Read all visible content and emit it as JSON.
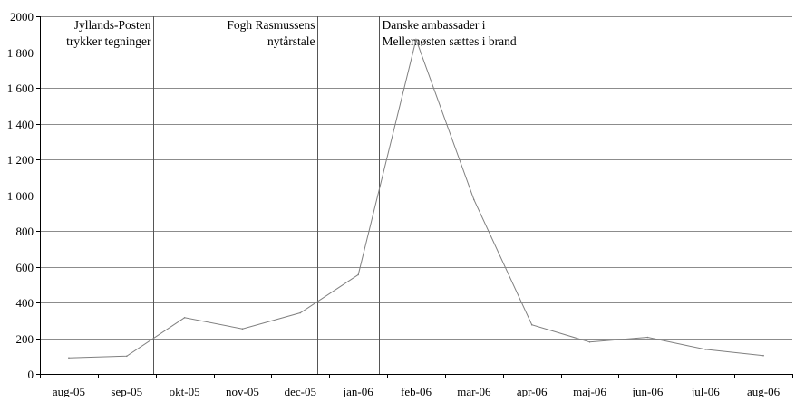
{
  "chart_data": {
    "type": "line",
    "title": "",
    "xlabel": "",
    "ylabel": "",
    "categories": [
      "aug-05",
      "sep-05",
      "okt-05",
      "nov-05",
      "dec-05",
      "jan-06",
      "feb-06",
      "mar-06",
      "apr-06",
      "maj-06",
      "jun-06",
      "jul-06",
      "aug-06"
    ],
    "series": [
      {
        "values": [
          90,
          100,
          315,
          252,
          342,
          555,
          1870,
          975,
          275,
          178,
          205,
          137,
          103
        ]
      }
    ],
    "ylim": [
      0,
      2000
    ],
    "yticks": [
      0,
      200,
      400,
      600,
      800,
      1000,
      1200,
      1400,
      1600,
      1800,
      2000
    ],
    "ytick_labels": [
      "0",
      "200",
      "400",
      "600",
      "800",
      "1 000",
      "1 200",
      "1 400",
      "1 600",
      "1 800",
      "2000"
    ],
    "grid": "horizontal",
    "legend": "none",
    "line_color": "#808080",
    "annotations": [
      {
        "x_index": 1.45,
        "text_lines": [
          "Jyllands-Posten",
          "trykker tegninger"
        ],
        "align": "right"
      },
      {
        "x_index": 4.3,
        "text_lines": [
          "Fogh Rasmussens",
          "nytårstale"
        ],
        "align": "right"
      },
      {
        "x_index": 5.35,
        "text_lines": [
          "Danske ambassader i",
          "Mellemøsten sættes i brand"
        ],
        "align": "left"
      }
    ]
  }
}
